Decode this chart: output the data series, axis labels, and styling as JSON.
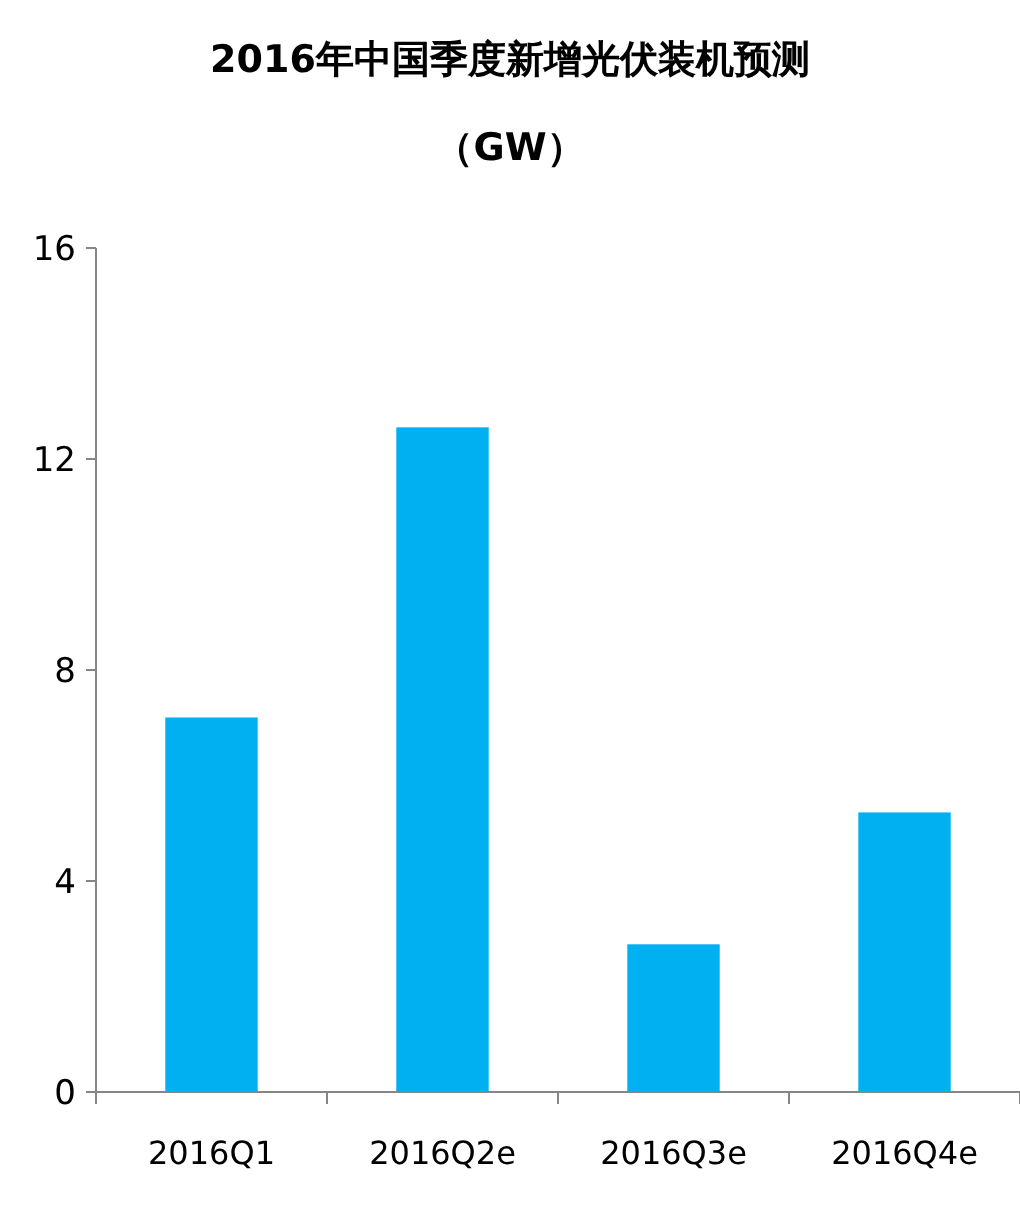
{
  "chart_data": {
    "type": "bar",
    "title": "2016年中国季度新增光伏装机预测",
    "subtitle": "（GW）",
    "categories": [
      "2016Q1",
      "2016Q2e",
      "2016Q3e",
      "2016Q4e"
    ],
    "values": [
      7.1,
      12.6,
      2.8,
      5.3
    ],
    "color": "#00b0f0",
    "ylim": [
      0,
      16
    ],
    "yticks": [
      0,
      4,
      8,
      12,
      16
    ],
    "grid": false
  }
}
